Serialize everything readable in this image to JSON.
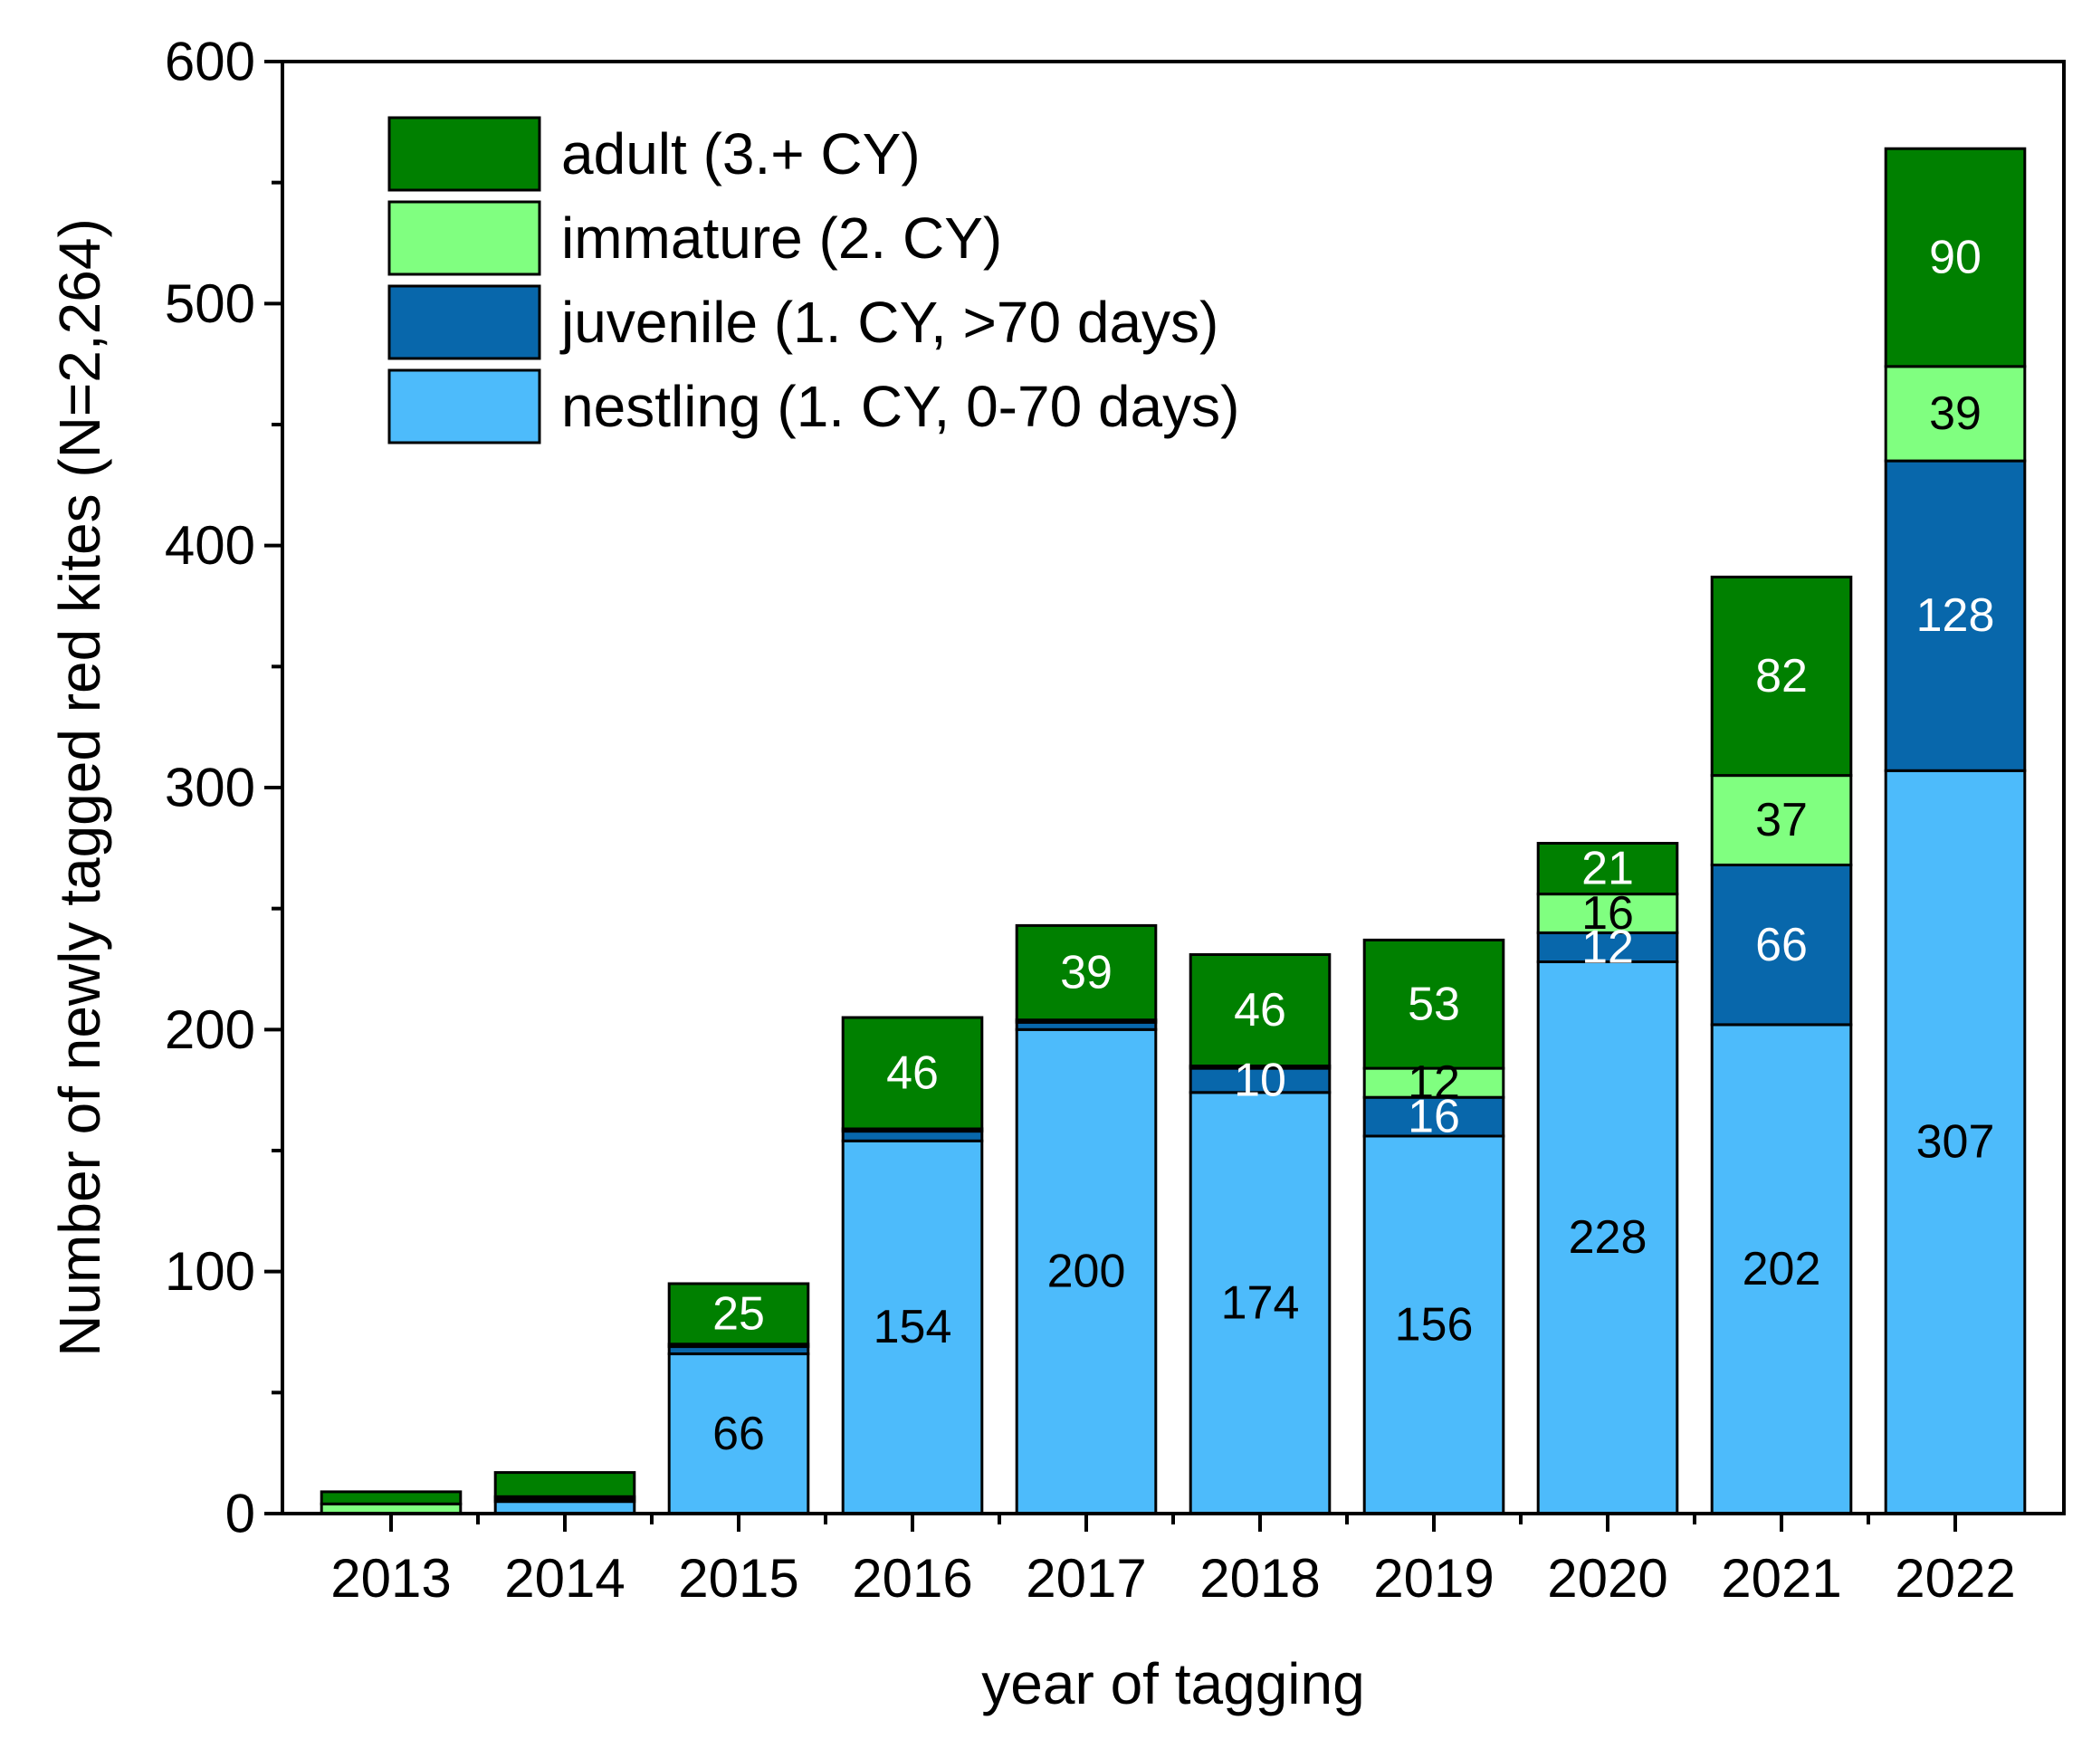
{
  "chart_data": {
    "type": "bar",
    "stacked": true,
    "title": "",
    "xlabel": "year of tagging",
    "ylabel": "Number of newly tagged red kites (N=2,264)",
    "ylim": [
      0,
      600
    ],
    "yticks": [
      0,
      100,
      200,
      300,
      400,
      500,
      600
    ],
    "categories": [
      "2013",
      "2014",
      "2015",
      "2016",
      "2017",
      "2018",
      "2019",
      "2020",
      "2021",
      "2022"
    ],
    "series": [
      {
        "name": "nestling (1. CY, 0-70 days)",
        "color": "#4dbbfb",
        "label_color": "#000000",
        "values": [
          0,
          5,
          66,
          154,
          200,
          174,
          156,
          228,
          202,
          307
        ],
        "labels": [
          "",
          "",
          "66",
          "154",
          "200",
          "174",
          "156",
          "228",
          "202",
          "307"
        ]
      },
      {
        "name": "juvenile (1. CY, >70 days)",
        "color": "#0867ab",
        "label_color": "#ffffff",
        "values": [
          0,
          1,
          3,
          4,
          3,
          10,
          16,
          12,
          66,
          128
        ],
        "labels": [
          "",
          "",
          "",
          "",
          "",
          "10",
          "16",
          "12",
          "66",
          "128"
        ]
      },
      {
        "name": "immature (2. CY)",
        "color": "#80ff80",
        "label_color": "#000000",
        "values": [
          4,
          1,
          1,
          1,
          1,
          1,
          12,
          16,
          37,
          39
        ],
        "labels": [
          "",
          "",
          "",
          "",
          "",
          "",
          "12",
          "16",
          "37",
          "39"
        ]
      },
      {
        "name": "adult (3.+ CY)",
        "color": "#008000",
        "label_color": "#ffffff",
        "values": [
          5,
          10,
          25,
          46,
          39,
          46,
          53,
          21,
          82,
          90
        ],
        "labels": [
          "",
          "",
          "25",
          "46",
          "39",
          "46",
          "53",
          "21",
          "82",
          "90"
        ]
      }
    ],
    "legend": {
      "placement": "top-left",
      "order": [
        "adult (3.+ CY)",
        "immature (2. CY)",
        "juvenile (1. CY, >70 days)",
        "nestling (1. CY, 0-70 days)"
      ]
    },
    "grid": false
  }
}
